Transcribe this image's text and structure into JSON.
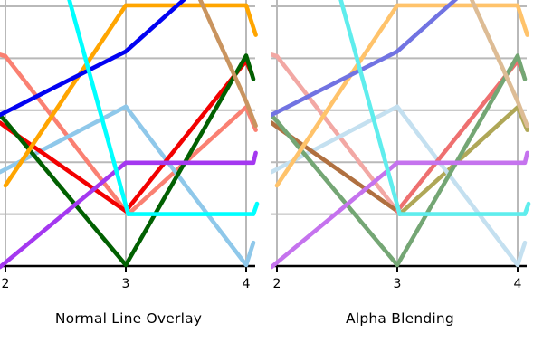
{
  "figure": {
    "background": "#ffffff",
    "panels": [
      {
        "id": "normal",
        "title": "Normal Line Overlay",
        "mode": "normal"
      },
      {
        "id": "alpha",
        "title": "Alpha Blending",
        "mode": "alpha"
      }
    ]
  },
  "chart_data": {
    "type": "line",
    "title": "",
    "xlabel": "",
    "ylabel": "",
    "panel_titles": [
      "Normal Line Overlay",
      "Alpha Blending"
    ],
    "x_ticks": [
      2,
      3,
      4
    ],
    "x_tick_labels": [
      "2",
      "3",
      "4"
    ],
    "y_gridline_values": [
      1,
      2,
      3,
      4,
      5
    ],
    "xlim_visible": [
      1.955,
      4.09
    ],
    "ylim_visible": [
      0,
      5.12
    ],
    "grid": true,
    "grid_color": "#b9b9b9",
    "axis_color": "#000000",
    "series": [
      {
        "name": "salmon",
        "points": [
          [
            1.955,
            4.07
          ],
          [
            2,
            4.04
          ],
          [
            3.02,
            1.0
          ],
          [
            4,
            3.06
          ],
          [
            4.08,
            2.62
          ]
        ],
        "color_normal": "#FA8072",
        "alpha_segments": [
          {
            "points": [
              [
                1.955,
                4.07
              ],
              [
                2,
                4.04
              ],
              [
                3.02,
                1.0
              ]
            ],
            "color": "#F2A8A4"
          },
          {
            "points": [
              [
                3.02,
                1.0
              ],
              [
                4,
                3.06
              ],
              [
                4.08,
                2.62
              ]
            ],
            "color": "#AFA757"
          }
        ]
      },
      {
        "name": "sky-blue",
        "points": [
          [
            1.955,
            1.81
          ],
          [
            3,
            3.07
          ],
          [
            4,
            0.02
          ],
          [
            4.06,
            0.45
          ]
        ],
        "color_normal": "#8FC8EA",
        "color_alpha": "#C4E0F0"
      },
      {
        "name": "red",
        "points": [
          [
            1.955,
            2.76
          ],
          [
            2,
            2.68
          ],
          [
            3,
            1.06
          ],
          [
            4,
            3.95
          ],
          [
            4.05,
            3.68
          ]
        ],
        "color_normal": "#F20000",
        "alpha_segments": [
          {
            "points": [
              [
                1.955,
                2.76
              ],
              [
                2,
                2.68
              ],
              [
                3,
                1.06
              ]
            ],
            "color": "#B07040"
          },
          {
            "points": [
              [
                3,
                1.06
              ],
              [
                4,
                3.95
              ],
              [
                4.05,
                3.68
              ]
            ],
            "color": "#EE7070"
          }
        ]
      },
      {
        "name": "dark-green",
        "points": [
          [
            1.955,
            2.9
          ],
          [
            2,
            2.79
          ],
          [
            3,
            0.02
          ],
          [
            4,
            4.05
          ],
          [
            4.06,
            3.6
          ]
        ],
        "color_normal": "#016001",
        "color_alpha": "#74A674"
      },
      {
        "name": "purple",
        "points": [
          [
            1.955,
            -0.02
          ],
          [
            3,
            1.99
          ],
          [
            4.06,
            1.99
          ],
          [
            4.08,
            2.18
          ]
        ],
        "color_normal": "#A438F0",
        "color_alpha": "#C573EE"
      },
      {
        "name": "orange",
        "points": [
          [
            2,
            1.55
          ],
          [
            3,
            5.02
          ],
          [
            4.0,
            5.02
          ],
          [
            4.08,
            4.45
          ]
        ],
        "color_normal": "#FFA500",
        "color_alpha": "#FFC36B"
      },
      {
        "name": "tan",
        "points": [
          [
            3,
            8.3
          ],
          [
            4,
            3.17
          ],
          [
            4.08,
            2.7
          ]
        ],
        "color_normal": "#C9945F",
        "color_alpha": "#DDBC95"
      },
      {
        "name": "blue",
        "points": [
          [
            1.955,
            2.91
          ],
          [
            3,
            4.13
          ],
          [
            4,
            6.2
          ]
        ],
        "color_normal": "#0202F2",
        "color_alpha": "#7173E2"
      },
      {
        "name": "cyan",
        "points": [
          [
            2,
            9.6
          ],
          [
            3.02,
            1.0
          ],
          [
            4.06,
            1.0
          ],
          [
            4.09,
            1.2
          ]
        ],
        "color_normal": "#00FFFF",
        "color_alpha": "#5FEDED"
      }
    ]
  }
}
